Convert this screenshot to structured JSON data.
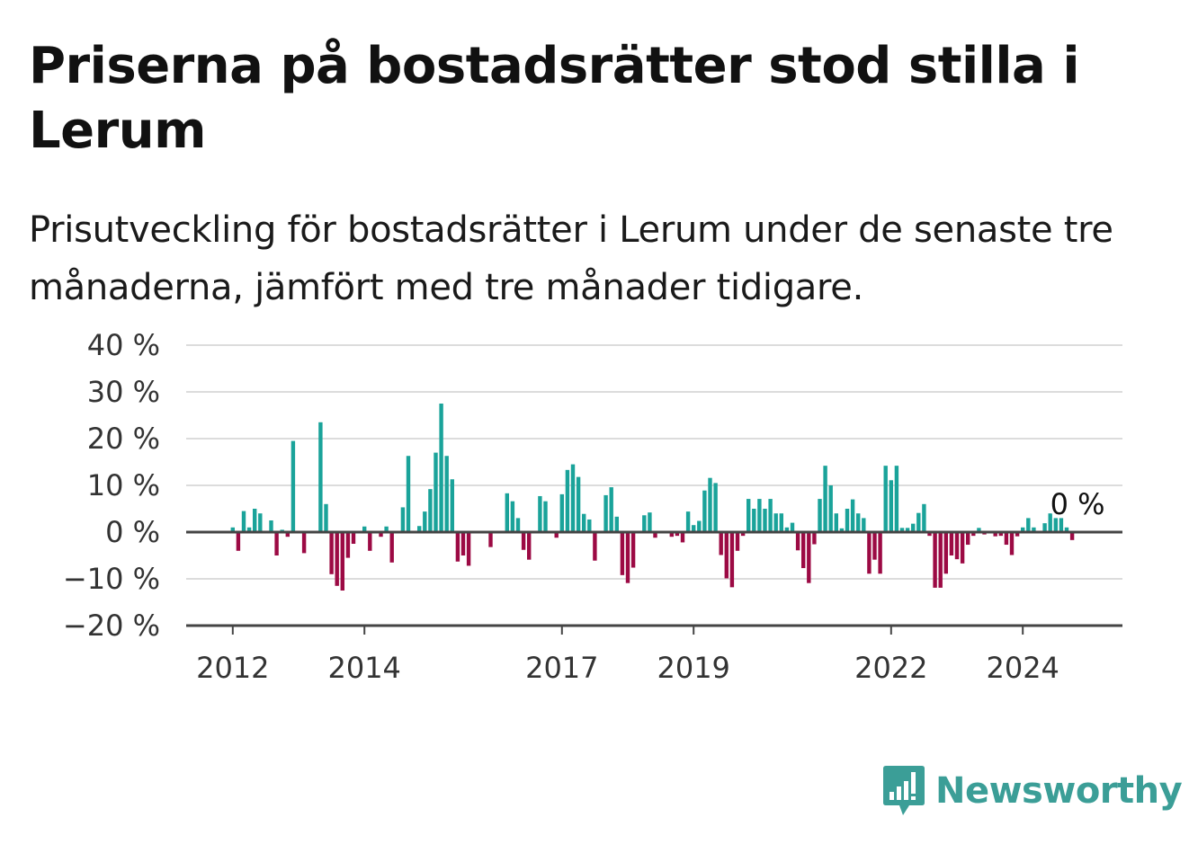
{
  "title": "Priserna på bostadsrätter stod stilla i Lerum",
  "subtitle": "Prisutveckling för bostadsrätter i Lerum under de senaste tre månaderna, jämfört med tre månader tidigare.",
  "brand": {
    "name": "Newsworthy",
    "icon": "newsworthy-logo-icon",
    "color": "#3b9e97"
  },
  "colors": {
    "positive": "#1aa39a",
    "negative": "#9c0a44",
    "grid": "#dcdcdc",
    "zero": "#444444"
  },
  "chart_data": {
    "type": "bar",
    "title": "",
    "xlabel": "",
    "ylabel": "",
    "ylim": [
      -20,
      40
    ],
    "y_ticks": [
      {
        "value": 40,
        "label": "40 %"
      },
      {
        "value": 30,
        "label": "30 %"
      },
      {
        "value": 20,
        "label": "20 %"
      },
      {
        "value": 10,
        "label": "10 %"
      },
      {
        "value": 0,
        "label": "0 %"
      },
      {
        "value": -10,
        "label": "−10 %"
      },
      {
        "value": -20,
        "label": "−20 %"
      }
    ],
    "x_ticks": [
      {
        "value": 2012,
        "label": "2012"
      },
      {
        "value": 2014,
        "label": "2014"
      },
      {
        "value": 2017,
        "label": "2017"
      },
      {
        "value": 2019,
        "label": "2019"
      },
      {
        "value": 2022,
        "label": "2022"
      },
      {
        "value": 2024,
        "label": "2024"
      }
    ],
    "x_start": "2012-01",
    "frequency": "monthly",
    "grid": true,
    "annotation": {
      "label": "0 %",
      "value": 0
    },
    "values": [
      1,
      -4,
      4.5,
      1,
      5,
      4,
      0,
      2.5,
      -5,
      0.5,
      -1,
      19.5,
      0,
      -4.5,
      0,
      0,
      23.5,
      6,
      -9,
      -11.5,
      -12.5,
      -5.5,
      -2.5,
      0,
      1.2,
      -4,
      0,
      -1,
      1.2,
      -6.5,
      0,
      5.3,
      16.3,
      0,
      1.3,
      4.4,
      9.2,
      17,
      27.5,
      16.3,
      11.3,
      -6.3,
      -5,
      -7.2,
      0,
      0,
      0,
      -3.2,
      0,
      0,
      8.3,
      6.6,
      3,
      -3.8,
      -5.9,
      0,
      7.7,
      6.6,
      0,
      -1.2,
      8.1,
      13.3,
      14.5,
      11.8,
      3.9,
      2.7,
      -6.1,
      0,
      7.9,
      9.6,
      3.3,
      -9.2,
      -10.9,
      -7.6,
      0,
      3.6,
      4.2,
      -1.2,
      0,
      0,
      -1,
      -0.8,
      -2.2,
      4.4,
      1.5,
      2.4,
      8.9,
      11.6,
      10.5,
      -4.9,
      -9.9,
      -11.8,
      -4,
      -0.8,
      7.1,
      5,
      7.1,
      5,
      7.1,
      4,
      4,
      1,
      2,
      -3.9,
      -7.7,
      -10.9,
      -2.6,
      7.1,
      14.2,
      10,
      4,
      0.8,
      5,
      7,
      4,
      3,
      -8.9,
      -5.9,
      -8.9,
      14.2,
      11.1,
      14.2,
      0.9,
      0.9,
      1.8,
      4.1,
      6,
      -0.8,
      -11.9,
      -11.9,
      -8.9,
      -5,
      -5.8,
      -6.7,
      -2.7,
      -0.8,
      0.9,
      -0.5,
      0,
      -0.9,
      -0.8,
      -2.7,
      -4.9,
      -0.9,
      1,
      3,
      1,
      0,
      1.9,
      4,
      3,
      3,
      1,
      -1.7
    ]
  }
}
